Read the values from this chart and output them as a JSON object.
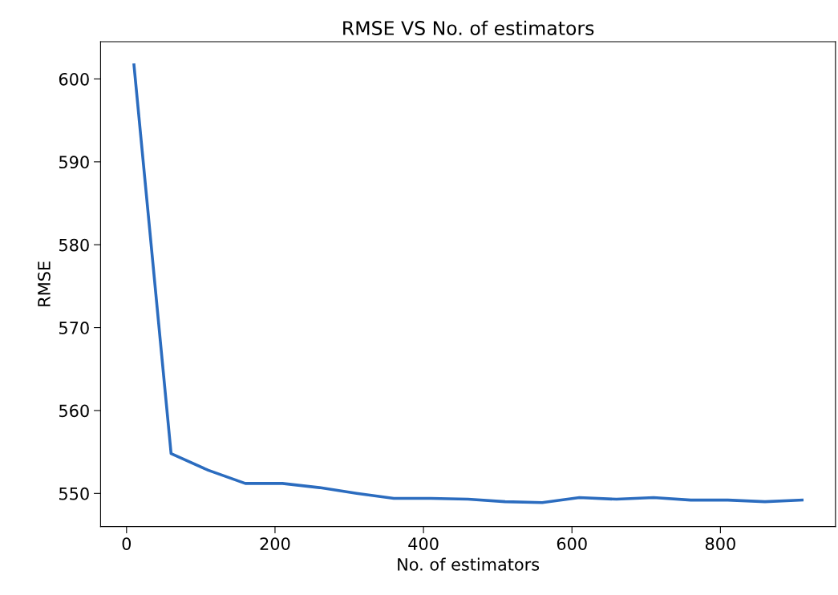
{
  "chart_data": {
    "type": "line",
    "title": "RMSE VS No. of estimators",
    "xlabel": "No. of estimators",
    "ylabel": "RMSE",
    "x": [
      10,
      60,
      110,
      160,
      210,
      260,
      310,
      360,
      410,
      460,
      510,
      560,
      610,
      660,
      710,
      760,
      810,
      860,
      910
    ],
    "series": [
      {
        "color": "#2b6cbf",
        "values": [
          601.7,
          554.8,
          552.8,
          551.2,
          551.2,
          550.7,
          550.0,
          549.4,
          549.4,
          549.3,
          549.0,
          548.9,
          549.5,
          549.3,
          549.5,
          549.2,
          549.2,
          549.0,
          549.2
        ]
      }
    ],
    "xlim": [
      -35,
      955
    ],
    "ylim": [
      546,
      604.5
    ],
    "xticks": [
      0,
      200,
      400,
      600,
      800
    ],
    "yticks": [
      550,
      560,
      570,
      580,
      590,
      600
    ],
    "grid": false
  }
}
